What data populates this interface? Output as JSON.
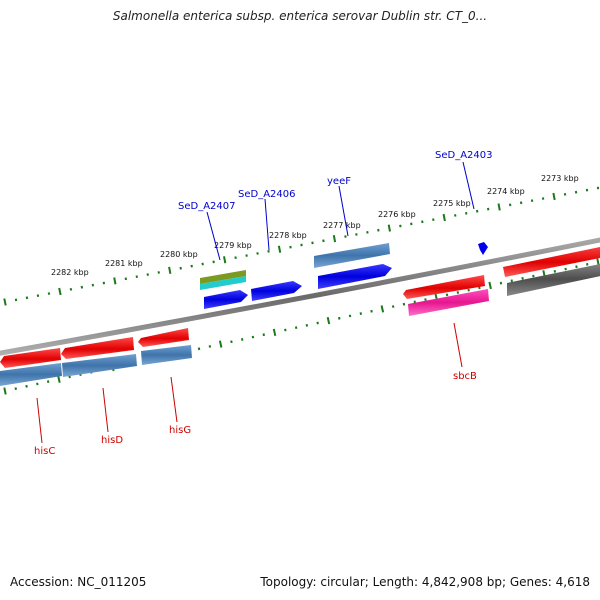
{
  "title": "Salmonella enterica subsp. enterica serovar Dublin str. CT_0...",
  "footer": {
    "accession": "Accession: NC_011205",
    "summary": "Topology: circular; Length: 4,842,908 bp; Genes: 4,618"
  },
  "colors": {
    "backbone": "#7f7f7f",
    "tick": "#1a7a1a",
    "forward_cds": "#0000ee",
    "reverse_cds": "#ee0000",
    "gene_bar": "#4a7fb8",
    "gene_bar_red": "#dd0000",
    "magenta": "#ff1aa0",
    "olive": "#7a9a20",
    "cyan": "#22cccc",
    "grey_bar": "#555555",
    "label_blue": "#0000cc",
    "label_red": "#cc0000"
  },
  "kbp_labels": [
    "2273 kbp",
    "2274 kbp",
    "2275 kbp",
    "2276 kbp",
    "2277 kbp",
    "2278 kbp",
    "2279 kbp",
    "2280 kbp",
    "2281 kbp",
    "2282 kbp"
  ],
  "gene_labels_top": [
    "SeD_A2403",
    "yeeF",
    "SeD_A2406",
    "SeD_A2407"
  ],
  "gene_labels_bottom": [
    "hisC",
    "hisD",
    "hisG",
    "sbcB"
  ]
}
